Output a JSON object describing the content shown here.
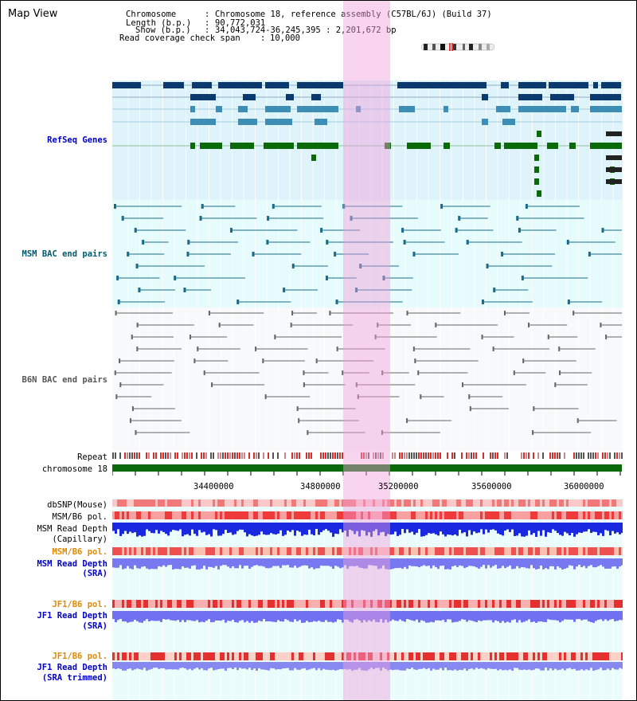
{
  "view_title": "Map View",
  "header": {
    "chromosome_key": "Chromosome",
    "chromosome_val": "Chromosome 18, reference assembly (C57BL/6J) (Build 37)",
    "length_key": "Length (b.p.)",
    "length_val": "90,772,031",
    "show_key": "Show (b.p.)",
    "show_val": "34,043,724-36,245,395 : 2,201,672 bp",
    "span_key": "Read coverage check span",
    "span_val": "10,000"
  },
  "tracks": {
    "refseq": "RefSeq Genes",
    "msm_bac": "MSM BAC end pairs",
    "b6n_bac": "B6N BAC end pairs",
    "repeat": "Repeat",
    "chromosome": "chromosome 18",
    "dbsnp": "dbSNP(Mouse)",
    "msm_b6_pol_1": "MSM/B6 pol.",
    "msm_read_depth_1": "MSM Read Depth",
    "msm_read_depth_1_sub": "(Capillary)",
    "msm_b6_pol_2": "MSM/B6 pol.",
    "msm_read_depth_2": "MSM Read Depth",
    "msm_read_depth_2_sub": "(SRA)",
    "jf1_b6_pol_1": "JF1/B6 pol.",
    "jf1_read_depth_1": "JF1 Read Depth",
    "jf1_read_depth_1_sub": "(SRA)",
    "jf1_b6_pol_2": "JF1/B6 pol.",
    "jf1_read_depth_2": "JF1 Read Depth",
    "jf1_read_depth_2_sub": "(SRA trimmed)"
  },
  "ruler": {
    "ticks": [
      "34400000",
      "34800000",
      "35200000",
      "35600000",
      "36000000"
    ]
  },
  "colors": {
    "refseq_bg": "#dff3fb",
    "msm_bg": "#e6fbfc",
    "b6n_bg": "#f7f9fb",
    "lower_bg": "#eafcfb",
    "gene_dark": "#0b3a6e",
    "gene_mid": "#3d8db5",
    "gene_green": "#0a6a0a",
    "msm_line": "#1a6c8a",
    "b6n_line": "#666666",
    "chromosome_bar": "#0a6a0a",
    "highlight": "#f0a0dc"
  }
}
